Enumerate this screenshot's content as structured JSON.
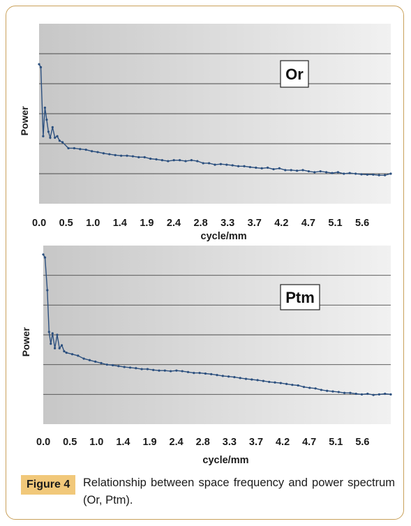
{
  "figure": {
    "label": "Figure 4",
    "caption": "Relationship between space frequency and power spectrum (Or, Ptm)."
  },
  "chart_data": [
    {
      "type": "line",
      "panel_label": "Or",
      "title": "",
      "xlabel": "cycle/mm",
      "ylabel": "Power",
      "x_tick_labels": [
        "0.0",
        "0.5",
        "1.0",
        "1.4",
        "1.9",
        "2.4",
        "2.8",
        "3.3",
        "3.7",
        "4.2",
        "4.7",
        "5.1",
        "5.6"
      ],
      "grid": true,
      "ylim": [
        0,
        6
      ],
      "y_gridlines": [
        1,
        2,
        3,
        4,
        5
      ],
      "xlim": [
        0,
        6.0
      ],
      "series": [
        {
          "color": "#2b4f7e",
          "values": [
            [
              0.0,
              4.65
            ],
            [
              0.03,
              4.55
            ],
            [
              0.07,
              2.25
            ],
            [
              0.1,
              3.2
            ],
            [
              0.13,
              2.8
            ],
            [
              0.16,
              2.4
            ],
            [
              0.19,
              2.2
            ],
            [
              0.23,
              2.55
            ],
            [
              0.27,
              2.2
            ],
            [
              0.31,
              2.25
            ],
            [
              0.35,
              2.1
            ],
            [
              0.4,
              2.05
            ],
            [
              0.5,
              1.85
            ],
            [
              0.6,
              1.85
            ],
            [
              0.7,
              1.82
            ],
            [
              0.8,
              1.8
            ],
            [
              0.9,
              1.75
            ],
            [
              1.0,
              1.72
            ],
            [
              1.1,
              1.68
            ],
            [
              1.2,
              1.65
            ],
            [
              1.3,
              1.62
            ],
            [
              1.4,
              1.6
            ],
            [
              1.5,
              1.6
            ],
            [
              1.6,
              1.58
            ],
            [
              1.7,
              1.55
            ],
            [
              1.8,
              1.55
            ],
            [
              1.9,
              1.5
            ],
            [
              2.0,
              1.48
            ],
            [
              2.1,
              1.45
            ],
            [
              2.2,
              1.42
            ],
            [
              2.3,
              1.45
            ],
            [
              2.4,
              1.45
            ],
            [
              2.5,
              1.42
            ],
            [
              2.6,
              1.45
            ],
            [
              2.7,
              1.42
            ],
            [
              2.8,
              1.35
            ],
            [
              2.9,
              1.35
            ],
            [
              3.0,
              1.3
            ],
            [
              3.1,
              1.32
            ],
            [
              3.2,
              1.3
            ],
            [
              3.3,
              1.28
            ],
            [
              3.4,
              1.25
            ],
            [
              3.5,
              1.25
            ],
            [
              3.6,
              1.22
            ],
            [
              3.7,
              1.2
            ],
            [
              3.8,
              1.18
            ],
            [
              3.9,
              1.2
            ],
            [
              4.0,
              1.15
            ],
            [
              4.1,
              1.18
            ],
            [
              4.2,
              1.12
            ],
            [
              4.3,
              1.12
            ],
            [
              4.4,
              1.1
            ],
            [
              4.5,
              1.12
            ],
            [
              4.6,
              1.08
            ],
            [
              4.7,
              1.05
            ],
            [
              4.8,
              1.08
            ],
            [
              4.9,
              1.05
            ],
            [
              5.0,
              1.02
            ],
            [
              5.1,
              1.05
            ],
            [
              5.2,
              1.0
            ],
            [
              5.3,
              1.02
            ],
            [
              5.4,
              1.0
            ],
            [
              5.5,
              0.98
            ],
            [
              5.6,
              0.97
            ],
            [
              5.7,
              0.97
            ],
            [
              5.8,
              0.95
            ],
            [
              5.9,
              0.95
            ],
            [
              6.0,
              1.0
            ]
          ]
        }
      ]
    },
    {
      "type": "line",
      "panel_label": "Ptm",
      "title": "",
      "xlabel": "cycle/mm",
      "ylabel": "Power",
      "x_tick_labels": [
        "0.0",
        "0.5",
        "1.0",
        "1.4",
        "1.9",
        "2.4",
        "2.8",
        "3.3",
        "3.7",
        "4.2",
        "4.7",
        "5.1",
        "5.6"
      ],
      "grid": true,
      "ylim": [
        0,
        6
      ],
      "y_gridlines": [
        1,
        2,
        3,
        4,
        5
      ],
      "xlim": [
        0,
        6.0
      ],
      "series": [
        {
          "color": "#2b4f7e",
          "values": [
            [
              0.0,
              5.7
            ],
            [
              0.03,
              5.6
            ],
            [
              0.07,
              4.5
            ],
            [
              0.1,
              3.1
            ],
            [
              0.13,
              2.7
            ],
            [
              0.16,
              3.05
            ],
            [
              0.2,
              2.55
            ],
            [
              0.24,
              3.0
            ],
            [
              0.28,
              2.55
            ],
            [
              0.32,
              2.65
            ],
            [
              0.36,
              2.45
            ],
            [
              0.4,
              2.4
            ],
            [
              0.5,
              2.35
            ],
            [
              0.6,
              2.3
            ],
            [
              0.7,
              2.2
            ],
            [
              0.8,
              2.15
            ],
            [
              0.9,
              2.1
            ],
            [
              1.0,
              2.05
            ],
            [
              1.1,
              2.0
            ],
            [
              1.2,
              1.98
            ],
            [
              1.3,
              1.95
            ],
            [
              1.4,
              1.92
            ],
            [
              1.5,
              1.9
            ],
            [
              1.6,
              1.88
            ],
            [
              1.7,
              1.85
            ],
            [
              1.8,
              1.85
            ],
            [
              1.9,
              1.82
            ],
            [
              2.0,
              1.8
            ],
            [
              2.1,
              1.8
            ],
            [
              2.2,
              1.78
            ],
            [
              2.3,
              1.8
            ],
            [
              2.4,
              1.78
            ],
            [
              2.5,
              1.75
            ],
            [
              2.6,
              1.72
            ],
            [
              2.7,
              1.72
            ],
            [
              2.8,
              1.7
            ],
            [
              2.9,
              1.68
            ],
            [
              3.0,
              1.65
            ],
            [
              3.1,
              1.62
            ],
            [
              3.2,
              1.6
            ],
            [
              3.3,
              1.58
            ],
            [
              3.4,
              1.55
            ],
            [
              3.5,
              1.52
            ],
            [
              3.6,
              1.5
            ],
            [
              3.7,
              1.48
            ],
            [
              3.8,
              1.45
            ],
            [
              3.9,
              1.42
            ],
            [
              4.0,
              1.4
            ],
            [
              4.1,
              1.38
            ],
            [
              4.2,
              1.35
            ],
            [
              4.3,
              1.32
            ],
            [
              4.4,
              1.3
            ],
            [
              4.5,
              1.25
            ],
            [
              4.6,
              1.22
            ],
            [
              4.7,
              1.2
            ],
            [
              4.8,
              1.15
            ],
            [
              4.9,
              1.12
            ],
            [
              5.0,
              1.1
            ],
            [
              5.1,
              1.08
            ],
            [
              5.2,
              1.05
            ],
            [
              5.3,
              1.05
            ],
            [
              5.4,
              1.02
            ],
            [
              5.5,
              1.0
            ],
            [
              5.6,
              1.02
            ],
            [
              5.7,
              0.98
            ],
            [
              5.8,
              1.0
            ],
            [
              5.9,
              1.02
            ],
            [
              6.0,
              1.0
            ]
          ]
        }
      ]
    }
  ]
}
